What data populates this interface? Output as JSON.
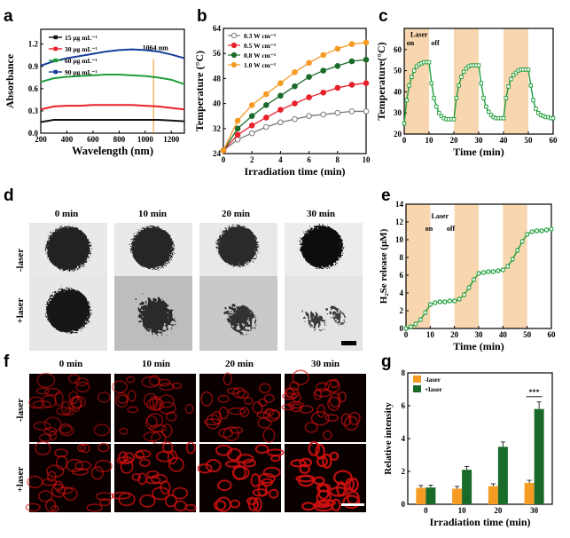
{
  "panels": {
    "a": "a",
    "b": "b",
    "c": "c",
    "d": "d",
    "e": "e",
    "f": "f",
    "g": "g"
  },
  "colors": {
    "black": "#111111",
    "red": "#e8202a",
    "green": "#1f9e3a",
    "darkgreen": "#1a6b2a",
    "blue": "#163c99",
    "orange": "#f59a23",
    "gray": "#777777",
    "band": "#f8d6b0",
    "fred": "#d41010"
  },
  "images": {
    "headers": [
      "0 min",
      "10 min",
      "20 min",
      "30 min"
    ],
    "d_rows": [
      "-laser",
      "+laser"
    ],
    "f_rows": [
      "-laser",
      "+laser"
    ]
  },
  "chart_data": [
    {
      "id": "a",
      "type": "line",
      "xlabel": "Wavelength (nm)",
      "ylabel": "Absorbance",
      "xlim": [
        200,
        1300
      ],
      "ylim": [
        0,
        1.4
      ],
      "xticks": [
        200,
        400,
        600,
        800,
        1000,
        1200
      ],
      "yticks": [
        "0.0",
        "0.3",
        "0.6",
        "0.9",
        "1.2"
      ],
      "annotation": "1064 nm",
      "marker_x": 1064,
      "series": [
        {
          "name": "15 μg mL⁻¹",
          "color": "black",
          "x": [
            200,
            300,
            400,
            500,
            600,
            700,
            800,
            900,
            1000,
            1100,
            1200,
            1300
          ],
          "y": [
            0.15,
            0.18,
            0.18,
            0.18,
            0.18,
            0.18,
            0.18,
            0.18,
            0.18,
            0.18,
            0.17,
            0.16
          ]
        },
        {
          "name": "30 μg mL⁻¹",
          "color": "red",
          "x": [
            200,
            300,
            400,
            500,
            600,
            700,
            800,
            900,
            1000,
            1100,
            1200,
            1300
          ],
          "y": [
            0.32,
            0.36,
            0.37,
            0.37,
            0.38,
            0.38,
            0.38,
            0.38,
            0.37,
            0.36,
            0.34,
            0.32
          ]
        },
        {
          "name": "60 μg mL⁻¹",
          "color": "green",
          "x": [
            200,
            300,
            400,
            500,
            600,
            700,
            800,
            900,
            1000,
            1100,
            1200,
            1300
          ],
          "y": [
            0.69,
            0.74,
            0.76,
            0.77,
            0.78,
            0.79,
            0.79,
            0.78,
            0.77,
            0.75,
            0.72,
            0.66
          ]
        },
        {
          "name": "90 μg mL⁻¹",
          "color": "blue",
          "x": [
            200,
            300,
            400,
            500,
            600,
            700,
            800,
            900,
            1000,
            1100,
            1200,
            1300
          ],
          "y": [
            0.91,
            0.97,
            1.01,
            1.04,
            1.07,
            1.1,
            1.12,
            1.13,
            1.12,
            1.1,
            1.06,
            1.01
          ]
        }
      ]
    },
    {
      "id": "b",
      "type": "line",
      "xlabel": "Irradiation time (min)",
      "ylabel": "Temperature (°C)",
      "xlim": [
        0,
        10
      ],
      "ylim": [
        24,
        64
      ],
      "xticks": [
        0,
        2,
        4,
        6,
        8,
        10
      ],
      "yticks": [
        24,
        32,
        40,
        48,
        56,
        64
      ],
      "series": [
        {
          "name": "0.3 W cm⁻²",
          "color": "gray",
          "x": [
            0,
            1,
            2,
            3,
            4,
            5,
            6,
            7,
            8,
            9,
            10
          ],
          "y": [
            25,
            28.5,
            30.5,
            32.5,
            34,
            35,
            36,
            36.5,
            37,
            37.5,
            37.5
          ]
        },
        {
          "name": "0.5 W cm⁻²",
          "color": "red",
          "x": [
            0,
            1,
            2,
            3,
            4,
            5,
            6,
            7,
            8,
            9,
            10
          ],
          "y": [
            25,
            30,
            33,
            35.5,
            38,
            40,
            42,
            43.5,
            45,
            46,
            46.5
          ]
        },
        {
          "name": "0.8 W cm⁻²",
          "color": "darkgreen",
          "x": [
            0,
            1,
            2,
            3,
            4,
            5,
            6,
            7,
            8,
            9,
            10
          ],
          "y": [
            25,
            32,
            36,
            39.5,
            42.5,
            45.5,
            48.5,
            50.5,
            52,
            53.5,
            54
          ]
        },
        {
          "name": "1.0 W cm⁻²",
          "color": "orange",
          "x": [
            0,
            1,
            2,
            3,
            4,
            5,
            6,
            7,
            8,
            9,
            10
          ],
          "y": [
            25,
            34.5,
            39.5,
            43,
            46.5,
            50,
            53,
            55.5,
            57.5,
            59,
            59.5
          ]
        }
      ]
    },
    {
      "id": "c",
      "type": "line",
      "xlabel": "Time (min)",
      "ylabel": "Temperature(°C)",
      "xlim": [
        0,
        60
      ],
      "ylim": [
        20,
        70
      ],
      "xticks": [
        0,
        10,
        20,
        30,
        40,
        50,
        60
      ],
      "yticks": [
        20,
        30,
        40,
        50,
        60
      ],
      "bands": [
        [
          0,
          10
        ],
        [
          20,
          30
        ],
        [
          40,
          50
        ]
      ],
      "ann_laser": "Laser",
      "ann_on": "on",
      "ann_off": "off",
      "series": [
        {
          "name": "",
          "color": "green",
          "x": [
            0,
            1,
            2,
            3,
            4,
            5,
            6,
            7,
            8,
            9,
            10,
            11,
            12,
            13,
            14,
            15,
            16,
            17,
            18,
            19,
            20,
            21,
            22,
            23,
            24,
            25,
            26,
            27,
            28,
            29,
            30,
            31,
            32,
            33,
            34,
            35,
            36,
            37,
            38,
            39,
            40,
            41,
            42,
            43,
            44,
            45,
            46,
            47,
            48,
            49,
            50,
            51,
            52,
            53,
            54,
            55,
            56,
            57,
            58,
            59,
            60
          ],
          "y": [
            25,
            36,
            43,
            47,
            50,
            52,
            53,
            53.5,
            54,
            54,
            54,
            44,
            37,
            33,
            30,
            28.5,
            27.5,
            27,
            27,
            27,
            27,
            37,
            43,
            47,
            49.5,
            51,
            52,
            52.5,
            52.5,
            52.5,
            52.5,
            44,
            37,
            33,
            30.5,
            29,
            28,
            27.5,
            27.5,
            27.5,
            27.5,
            37,
            42.5,
            46,
            48,
            49,
            50,
            50.5,
            50.5,
            50.5,
            50.5,
            43,
            36,
            32,
            30,
            29,
            28.5,
            28,
            28,
            27.5,
            27.5
          ]
        }
      ]
    },
    {
      "id": "e",
      "type": "line",
      "xlabel": "Time (min)",
      "ylabel": "H₂Se release (μM)",
      "xlim": [
        0,
        60
      ],
      "ylim": [
        0,
        14
      ],
      "xticks": [
        0,
        10,
        20,
        30,
        40,
        50,
        60
      ],
      "yticks": [
        0,
        2,
        4,
        6,
        8,
        10,
        12,
        14
      ],
      "bands": [
        [
          0,
          10
        ],
        [
          20,
          30
        ],
        [
          40,
          50
        ]
      ],
      "ann_laser": "Laser",
      "ann_on": "on",
      "ann_off": "off",
      "series": [
        {
          "name": "",
          "color": "green",
          "x": [
            0,
            2,
            4,
            6,
            8,
            10,
            12,
            14,
            16,
            18,
            20,
            22,
            24,
            26,
            28,
            30,
            32,
            34,
            36,
            38,
            40,
            42,
            44,
            46,
            48,
            50,
            52,
            54,
            56,
            58,
            60
          ],
          "y": [
            0,
            0.2,
            0.5,
            1.0,
            1.8,
            2.7,
            2.9,
            3.0,
            3.0,
            3.1,
            3.1,
            3.3,
            3.8,
            4.6,
            5.5,
            6.2,
            6.3,
            6.4,
            6.4,
            6.5,
            6.6,
            7.0,
            7.8,
            8.8,
            9.8,
            10.6,
            10.9,
            11.0,
            11.0,
            11.1,
            11.2
          ]
        }
      ]
    },
    {
      "id": "g",
      "type": "bar",
      "xlabel": "Irradiation time (min)",
      "ylabel": "Relative intensity",
      "categories": [
        "0",
        "10",
        "20",
        "30"
      ],
      "ylim": [
        0,
        8
      ],
      "yticks": [
        0,
        2,
        4,
        6,
        8
      ],
      "significance": "***",
      "series": [
        {
          "name": "-laser",
          "color": "orange",
          "values": [
            1.0,
            0.95,
            1.1,
            1.3
          ]
        },
        {
          "name": "+laser",
          "color": "darkgreen",
          "values": [
            1.02,
            2.1,
            3.5,
            5.8
          ]
        }
      ]
    }
  ]
}
